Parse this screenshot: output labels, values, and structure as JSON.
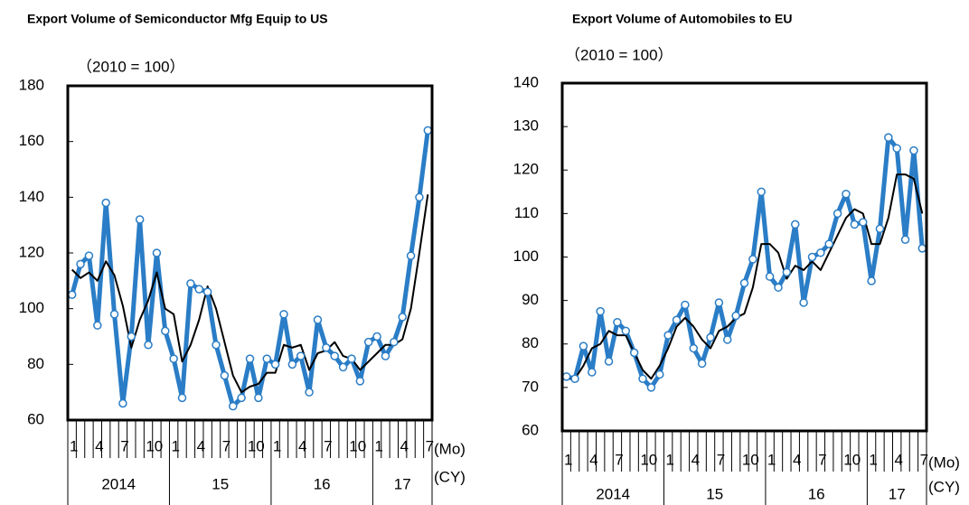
{
  "chart_data": [
    {
      "type": "line",
      "title": "Export Volume of Semiconductor Mfg Equip to US",
      "subtitle": "（2010 = 100）",
      "categories": [
        "1",
        null,
        null,
        "4",
        null,
        null,
        "7",
        null,
        null,
        "10",
        null,
        null,
        "1",
        null,
        null,
        "4",
        null,
        null,
        "7",
        null,
        null,
        "10",
        null,
        null,
        "1",
        null,
        null,
        "4",
        null,
        null,
        "7",
        null,
        null,
        "10",
        null,
        null,
        "1",
        null,
        null,
        "4",
        null,
        null,
        "7"
      ],
      "x_unit": "(Mo)",
      "years": [
        "2014",
        "15",
        "16",
        "17"
      ],
      "year_unit": "(CY)",
      "series": [
        {
          "color": "#2a7dc6",
          "markers": true,
          "values": [
            105,
            116,
            119,
            94,
            138,
            98,
            66,
            90,
            132,
            87,
            120,
            92,
            82,
            68,
            109,
            107,
            106,
            87,
            76,
            65,
            68,
            82,
            68,
            82,
            80,
            98,
            80,
            83,
            70,
            96,
            86,
            83,
            79,
            82,
            74,
            88,
            90,
            83,
            88,
            97,
            119,
            140,
            164
          ]
        },
        {
          "color": "#000000",
          "markers": false,
          "values": [
            114,
            111,
            113,
            110,
            117,
            112,
            101,
            86,
            96,
            103,
            113,
            100,
            98,
            81,
            87,
            96,
            108,
            100,
            88,
            76,
            70,
            72,
            73,
            77,
            77,
            87,
            86,
            87,
            78,
            84,
            85,
            88,
            83,
            82,
            78,
            81,
            84,
            87,
            87,
            89,
            100,
            120,
            141
          ]
        }
      ],
      "ylim": [
        60,
        180
      ],
      "yticks": [
        60,
        80,
        100,
        120,
        140,
        160,
        180
      ]
    },
    {
      "type": "line",
      "title": "Export Volume of Automobiles to EU",
      "subtitle": "（2010 = 100）",
      "categories": [
        "1",
        null,
        null,
        "4",
        null,
        null,
        "7",
        null,
        null,
        "10",
        null,
        null,
        "1",
        null,
        null,
        "4",
        null,
        null,
        "7",
        null,
        null,
        "10",
        null,
        null,
        "1",
        null,
        null,
        "4",
        null,
        null,
        "7",
        null,
        null,
        "10",
        null,
        null,
        "1",
        null,
        null,
        "4",
        null,
        null,
        "7"
      ],
      "x_unit": "(Mo)",
      "years": [
        "2014",
        "15",
        "16",
        "17"
      ],
      "year_unit": "(CY)",
      "series": [
        {
          "color": "#2a7dc6",
          "markers": true,
          "values": [
            72.5,
            72,
            79.5,
            73.5,
            87.5,
            76,
            85,
            83,
            78,
            72,
            70,
            73,
            82,
            85.5,
            89,
            79,
            75.5,
            81.5,
            89.5,
            81,
            86.5,
            94,
            99.5,
            115,
            95.5,
            93,
            96.5,
            107.5,
            89.5,
            100,
            101,
            103,
            110,
            114.5,
            107.5,
            108,
            94.5,
            106.5,
            127.5,
            125,
            104,
            124.5,
            102
          ]
        },
        {
          "color": "#000000",
          "markers": false,
          "values": [
            72,
            72,
            75,
            79,
            80,
            83,
            82,
            82,
            78,
            74,
            72,
            75,
            79,
            84,
            86,
            84,
            81,
            79,
            83,
            84,
            86,
            87,
            93,
            103,
            103,
            101,
            95,
            98,
            97,
            99,
            97,
            101,
            105,
            109,
            111,
            110,
            103,
            103,
            109,
            119,
            119,
            118,
            110
          ]
        }
      ],
      "ylim": [
        60,
        140
      ],
      "yticks": [
        60,
        70,
        80,
        90,
        100,
        110,
        120,
        130,
        140
      ]
    }
  ]
}
